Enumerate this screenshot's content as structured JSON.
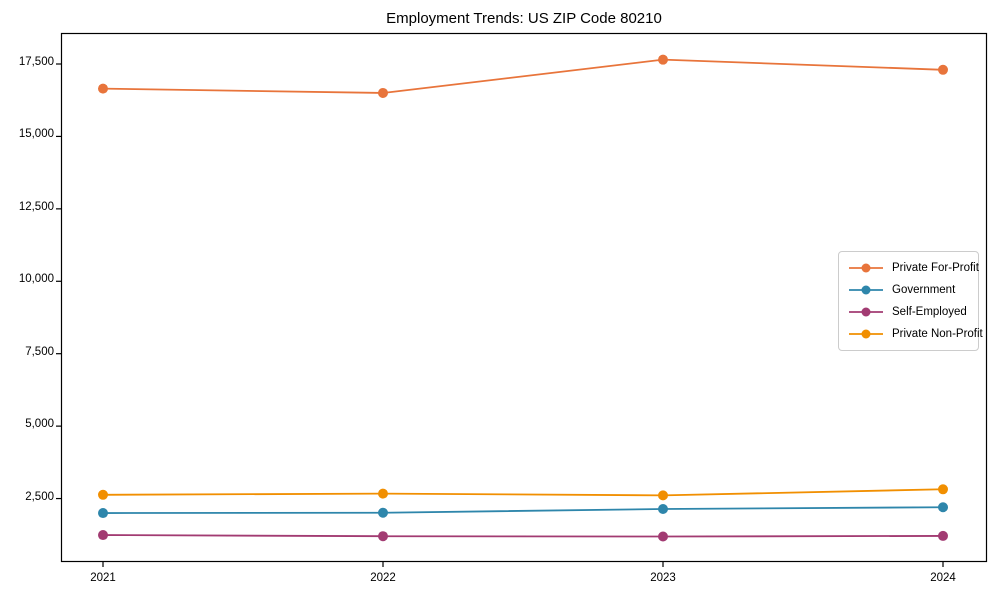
{
  "chart_data": {
    "type": "line",
    "title": "Employment Trends: US ZIP Code 80210",
    "xlabel": "",
    "ylabel": "",
    "categories": [
      "2021",
      "2022",
      "2023",
      "2024"
    ],
    "series": [
      {
        "name": "Private For-Profit",
        "color": "#E8743B",
        "values": [
          16650,
          16500,
          17650,
          17300
        ]
      },
      {
        "name": "Government",
        "color": "#2E86AB",
        "values": [
          2000,
          2010,
          2140,
          2200
        ]
      },
      {
        "name": "Self-Employed",
        "color": "#A23B72",
        "values": [
          1240,
          1200,
          1190,
          1210
        ]
      },
      {
        "name": "Private Non-Profit",
        "color": "#F18F01",
        "values": [
          2630,
          2670,
          2610,
          2820
        ]
      }
    ],
    "yticks": [
      2500,
      5000,
      7500,
      10000,
      12500,
      15000,
      17500
    ],
    "ytick_labels": [
      "2,500",
      "5,000",
      "7,500",
      "10,000",
      "12,500",
      "15,000",
      "17,500"
    ],
    "ylim": [
      310,
      18570
    ],
    "grid": false,
    "legend_position": "center-right",
    "axis_color": "#000000",
    "background": "#ffffff",
    "marker": "circle",
    "marker_radius": 5,
    "line_width": 1.8
  }
}
